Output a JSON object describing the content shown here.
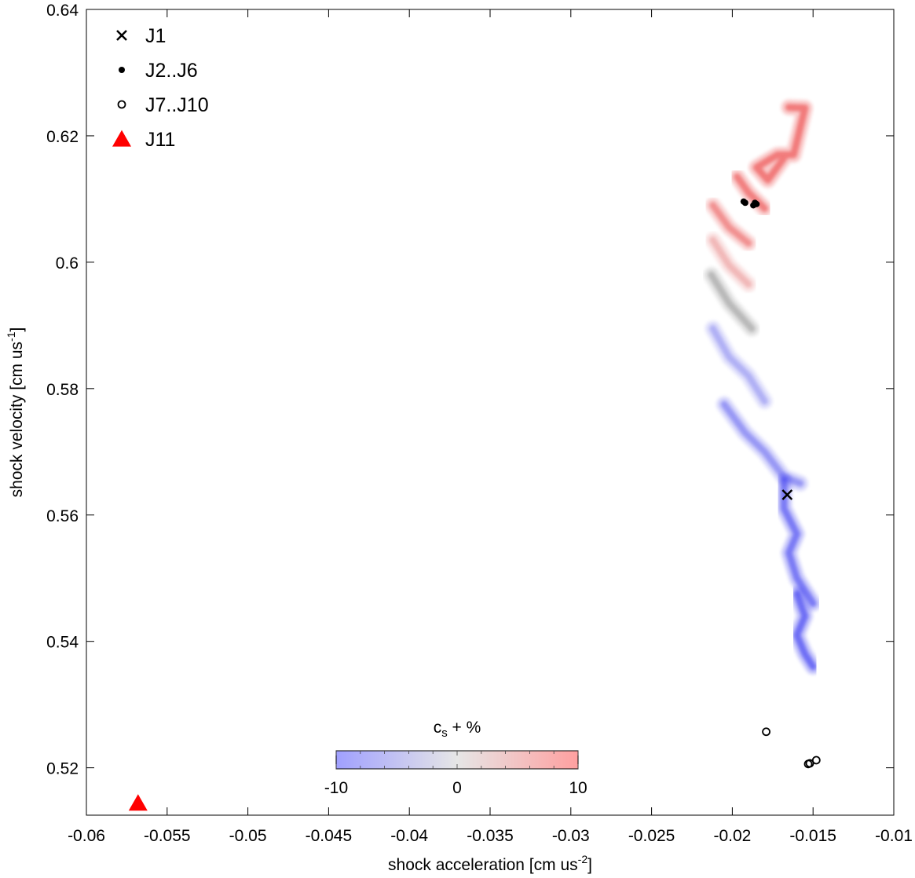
{
  "chart_data": {
    "type": "scatter",
    "xlabel": "shock acceleration [cm us",
    "xlabel_sup": "-2",
    "xlabel_end": "]",
    "ylabel": "shock velocity [cm us",
    "ylabel_sup": "-1",
    "ylabel_end": "]",
    "xlim": [
      -0.06,
      -0.01
    ],
    "ylim": [
      0.5125,
      0.64
    ],
    "x_ticks": [
      -0.06,
      -0.055,
      -0.05,
      -0.045,
      -0.04,
      -0.035,
      -0.03,
      -0.025,
      -0.02,
      -0.015,
      -0.01
    ],
    "x_tick_labels": [
      "-0.06",
      "-0.055",
      "-0.05",
      "-0.045",
      "-0.04",
      "-0.035",
      "-0.03",
      "-0.025",
      "-0.02",
      "-0.015",
      "-0.01"
    ],
    "y_ticks": [
      0.52,
      0.54,
      0.56,
      0.58,
      0.6,
      0.62,
      0.64
    ],
    "y_tick_labels": [
      "0.52",
      "0.54",
      "0.56",
      "0.58",
      "0.6",
      "0.62",
      "0.64"
    ],
    "grid": false,
    "legend_position": "top-left",
    "series": [
      {
        "name": "J1",
        "marker": "x",
        "color": "#000000",
        "points": [
          [
            -0.0166,
            0.5632
          ]
        ]
      },
      {
        "name": "J2..J6",
        "marker": "dot",
        "color": "#000000",
        "points": [
          [
            -0.0193,
            0.6096
          ],
          [
            -0.0192,
            0.6094
          ],
          [
            -0.0187,
            0.609
          ],
          [
            -0.0186,
            0.6094
          ],
          [
            -0.0185,
            0.6092
          ]
        ]
      },
      {
        "name": "J7..J10",
        "marker": "open-circle",
        "color": "#000000",
        "points": [
          [
            -0.0179,
            0.5257
          ],
          [
            -0.0153,
            0.5206
          ],
          [
            -0.0148,
            0.5212
          ],
          [
            -0.0152,
            0.5207
          ]
        ]
      },
      {
        "name": "J11",
        "marker": "triangle",
        "color": "#ff0000",
        "points": [
          [
            -0.0568,
            0.5144
          ]
        ]
      }
    ],
    "sample_clouds": [
      {
        "path": [
          [
            -0.0165,
            0.6245
          ],
          [
            -0.0155,
            0.6244
          ],
          [
            -0.0162,
            0.617
          ],
          [
            -0.0172,
            0.617
          ],
          [
            -0.0185,
            0.615
          ],
          [
            -0.0178,
            0.613
          ],
          [
            -0.0168,
            0.6165
          ]
        ],
        "cs_percent": 8.5
      },
      {
        "path": [
          [
            -0.0197,
            0.6135
          ],
          [
            -0.019,
            0.611
          ],
          [
            -0.018,
            0.6085
          ]
        ],
        "cs_percent": 8.0
      },
      {
        "path": [
          [
            -0.0212,
            0.609
          ],
          [
            -0.0202,
            0.6055
          ],
          [
            -0.019,
            0.603
          ]
        ],
        "cs_percent": 6.5
      },
      {
        "path": [
          [
            -0.0212,
            0.6035
          ],
          [
            -0.0202,
            0.5995
          ],
          [
            -0.019,
            0.5965
          ]
        ],
        "cs_percent": 3.0
      },
      {
        "path": [
          [
            -0.0213,
            0.598
          ],
          [
            -0.0202,
            0.5935
          ],
          [
            -0.0188,
            0.5895
          ]
        ],
        "cs_percent": 0.0
      },
      {
        "path": [
          [
            -0.0212,
            0.5895
          ],
          [
            -0.0202,
            0.585
          ],
          [
            -0.019,
            0.582
          ],
          [
            -0.018,
            0.578
          ]
        ],
        "cs_percent": -3.5
      },
      {
        "path": [
          [
            -0.0205,
            0.5775
          ],
          [
            -0.0192,
            0.573
          ],
          [
            -0.018,
            0.57
          ],
          [
            -0.0168,
            0.566
          ],
          [
            -0.0158,
            0.565
          ]
        ],
        "cs_percent": -5.5
      },
      {
        "path": [
          [
            -0.0168,
            0.5655
          ],
          [
            -0.0168,
            0.561
          ],
          [
            -0.016,
            0.557
          ],
          [
            -0.0165,
            0.554
          ],
          [
            -0.016,
            0.55
          ],
          [
            -0.015,
            0.546
          ]
        ],
        "cs_percent": -8.0
      },
      {
        "path": [
          [
            -0.016,
            0.5475
          ],
          [
            -0.0155,
            0.544
          ],
          [
            -0.016,
            0.541
          ],
          [
            -0.0155,
            0.538
          ],
          [
            -0.015,
            0.536
          ]
        ],
        "cs_percent": -9.0
      }
    ],
    "colorbar": {
      "title": "c",
      "title_sub": "s",
      "title_end": " + %",
      "min": -10,
      "max": 10,
      "min_color": "#a0a0ff",
      "mid_color": "#e6e6e6",
      "max_color": "#ffa0a0",
      "tick_labels": [
        "-10",
        "0",
        "10"
      ],
      "tick_values": [
        -10,
        0,
        10
      ]
    }
  }
}
